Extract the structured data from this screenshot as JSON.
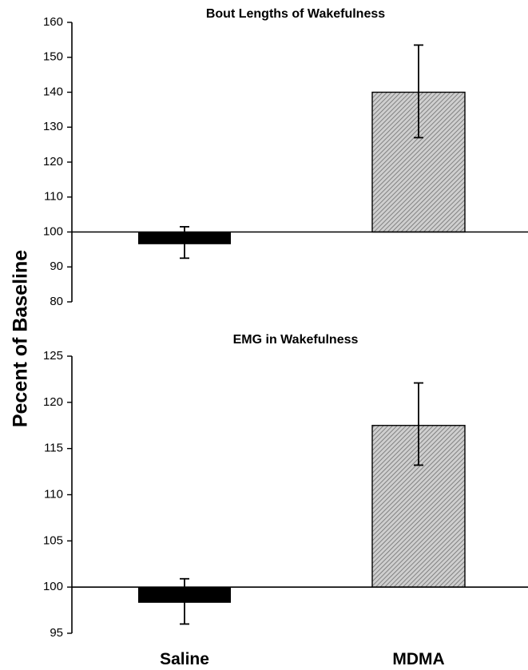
{
  "ylabel": "Pecent of Baseline",
  "categories": [
    "Saline",
    "MDMA"
  ],
  "colors": {
    "saline": "#000000",
    "mdma_hatch": "#6e6e6e",
    "mdma_fill": "#cfcfcf"
  },
  "chart_data": [
    {
      "type": "bar",
      "title": "Bout Lengths of Wakefulness",
      "categories": [
        "Saline",
        "MDMA"
      ],
      "baseline": 100,
      "ylim": [
        80,
        160
      ],
      "yticks": [
        80,
        90,
        100,
        110,
        120,
        130,
        140,
        150,
        160
      ],
      "values": [
        96.5,
        140
      ],
      "error_low": [
        92.5,
        127
      ],
      "error_high": [
        101.5,
        153.5
      ]
    },
    {
      "type": "bar",
      "title": "EMG in Wakefulness",
      "categories": [
        "Saline",
        "MDMA"
      ],
      "baseline": 100,
      "ylim": [
        95,
        125
      ],
      "yticks": [
        95,
        100,
        105,
        110,
        115,
        120,
        125
      ],
      "values": [
        98.3,
        117.5
      ],
      "error_low": [
        96,
        113.2
      ],
      "error_high": [
        100.9,
        122.1
      ]
    }
  ]
}
